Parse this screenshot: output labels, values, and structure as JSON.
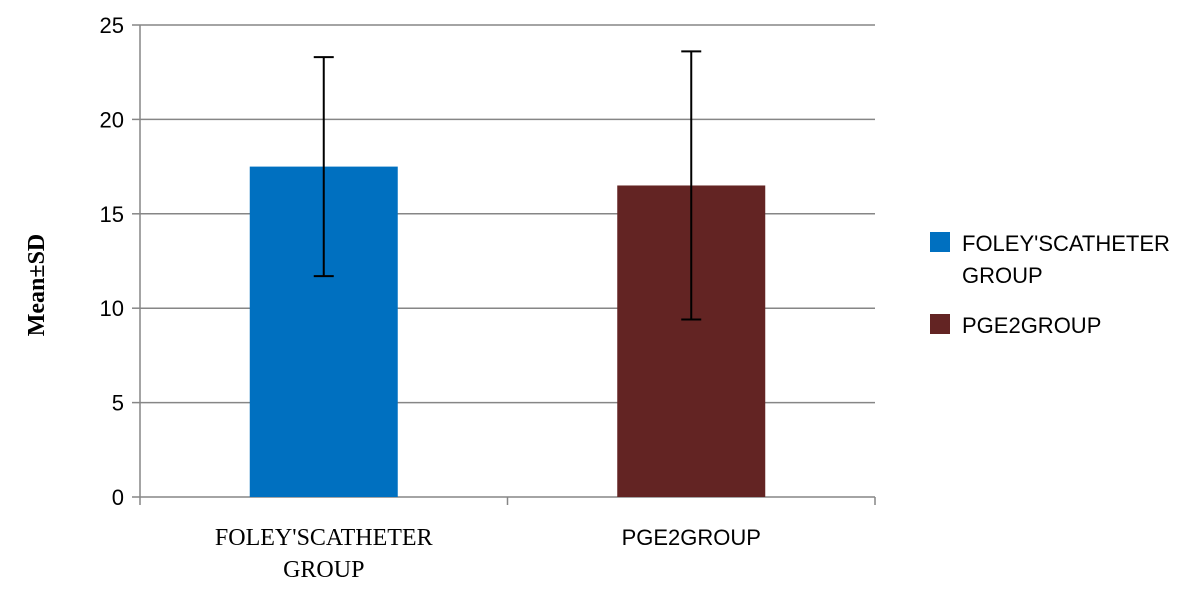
{
  "chart_data": {
    "type": "bar",
    "title": "",
    "xlabel": "",
    "ylabel": "Mean±SD",
    "ylim": [
      0,
      25
    ],
    "yticks": [
      0,
      5,
      10,
      15,
      20,
      25
    ],
    "grid": true,
    "legend_position": "right",
    "categories": [
      {
        "lines": [
          "FOLEY'SCATHETER",
          "GROUP"
        ]
      },
      {
        "lines": [
          "PGE2GROUP"
        ]
      }
    ],
    "series": [
      {
        "color": "#0070C0",
        "legend_lines": [
          "FOLEY'SCATHETER",
          "GROUP"
        ],
        "category_index": 0,
        "value": 17.5,
        "error_low": 11.7,
        "error_high": 23.3
      },
      {
        "color": "#632423",
        "legend_lines": [
          "PGE2GROUP"
        ],
        "category_index": 1,
        "value": 16.5,
        "error_low": 9.4,
        "error_high": 23.6
      }
    ]
  }
}
